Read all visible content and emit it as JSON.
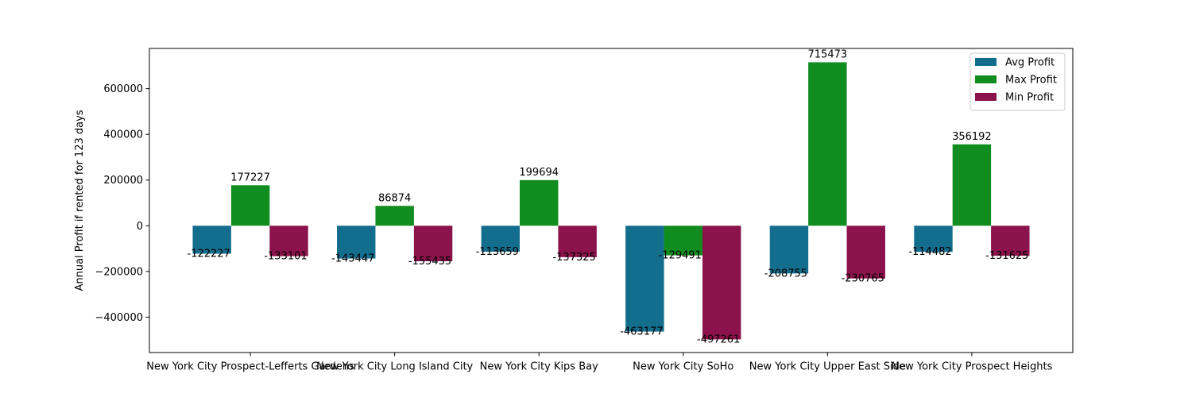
{
  "chart_data": {
    "type": "bar",
    "title": "",
    "xlabel": "",
    "ylabel": "Annual Profit if rented for 123 days",
    "categories": [
      "New York City Prospect-Lefferts Gardens",
      "New York City Long Island City",
      "New York City Kips Bay",
      "New York City SoHo",
      "New York City Upper East Side",
      "New York City Prospect Heights"
    ],
    "series": [
      {
        "name": "Avg Profit",
        "color": "#136d8d",
        "values": [
          -122227,
          -143447,
          -113659,
          -463177,
          -208755,
          -114482
        ]
      },
      {
        "name": "Max Profit",
        "color": "#118c1f",
        "values": [
          177227,
          86874,
          199694,
          -129491,
          715473,
          356192
        ]
      },
      {
        "name": "Min Profit",
        "color": "#8c124b",
        "values": [
          -133101,
          -155435,
          -137325,
          -497261,
          -230765,
          -131625
        ]
      }
    ],
    "ylim": [
      -555000,
      776000
    ],
    "yticks": [
      -400000,
      -200000,
      0,
      200000,
      400000,
      600000
    ],
    "ytick_labels": [
      "−400000",
      "−200000",
      "0",
      "200000",
      "400000",
      "600000"
    ],
    "grid": false,
    "legend_position": "top-right"
  }
}
